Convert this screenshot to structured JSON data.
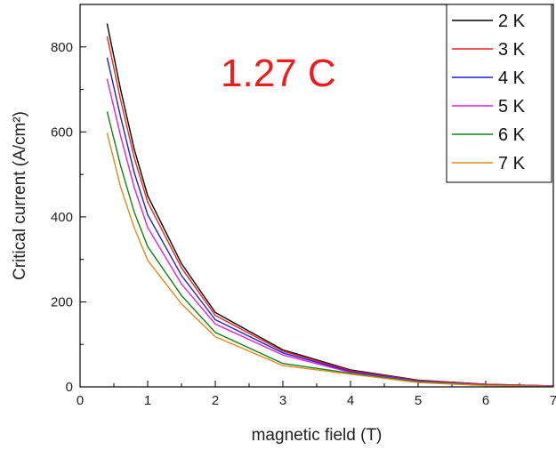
{
  "chart_data": {
    "type": "line",
    "xlabel": "magnetic field (T)",
    "ylabel": "Critical current (A/cm²)",
    "xlim": [
      0,
      7
    ],
    "ylim": [
      0,
      900
    ],
    "xticks": [
      0,
      1,
      2,
      3,
      4,
      5,
      6,
      7
    ],
    "yticks": [
      0,
      200,
      400,
      600,
      800
    ],
    "grid": false,
    "legend_position": "top-right",
    "annotation": {
      "text": "1.27 C",
      "color": "#ee1c1c"
    },
    "series": [
      {
        "name": "2 K",
        "color": "#000000",
        "x": [
          0.4,
          0.6,
          0.8,
          1.0,
          1.5,
          2.0,
          3.0,
          4.0,
          5.0,
          6.0,
          7.0
        ],
        "y": [
          855,
          700,
          560,
          450,
          290,
          175,
          87,
          40,
          16,
          6,
          2
        ]
      },
      {
        "name": "3 K",
        "color": "#e8281e",
        "x": [
          0.4,
          0.6,
          0.8,
          1.0,
          1.5,
          2.0,
          3.0,
          4.0,
          5.0,
          6.0,
          7.0
        ],
        "y": [
          825,
          675,
          540,
          435,
          280,
          168,
          84,
          38,
          15,
          6,
          2
        ]
      },
      {
        "name": "4 K",
        "color": "#1f1fd0",
        "x": [
          0.4,
          0.6,
          0.8,
          1.0,
          1.5,
          2.0,
          3.0,
          4.0,
          5.0,
          6.0,
          7.0
        ],
        "y": [
          775,
          635,
          505,
          405,
          262,
          158,
          80,
          36,
          14,
          5,
          2
        ]
      },
      {
        "name": "5 K",
        "color": "#e020e0",
        "x": [
          0.4,
          0.6,
          0.8,
          1.0,
          1.5,
          2.0,
          3.0,
          4.0,
          5.0,
          6.0,
          7.0
        ],
        "y": [
          725,
          590,
          470,
          375,
          242,
          148,
          75,
          34,
          13,
          5,
          2
        ]
      },
      {
        "name": "6 K",
        "color": "#128012",
        "x": [
          0.4,
          0.6,
          0.8,
          1.0,
          1.5,
          2.0,
          3.0,
          4.0,
          5.0,
          6.0,
          7.0
        ],
        "y": [
          648,
          520,
          412,
          330,
          215,
          128,
          55,
          32,
          12,
          4,
          1
        ]
      },
      {
        "name": "7 K",
        "color": "#e08a1a",
        "x": [
          0.4,
          0.6,
          0.8,
          1.0,
          1.5,
          2.0,
          3.0,
          4.0,
          5.0,
          6.0,
          7.0
        ],
        "y": [
          598,
          470,
          375,
          298,
          195,
          118,
          50,
          30,
          10,
          3,
          1
        ]
      }
    ]
  }
}
